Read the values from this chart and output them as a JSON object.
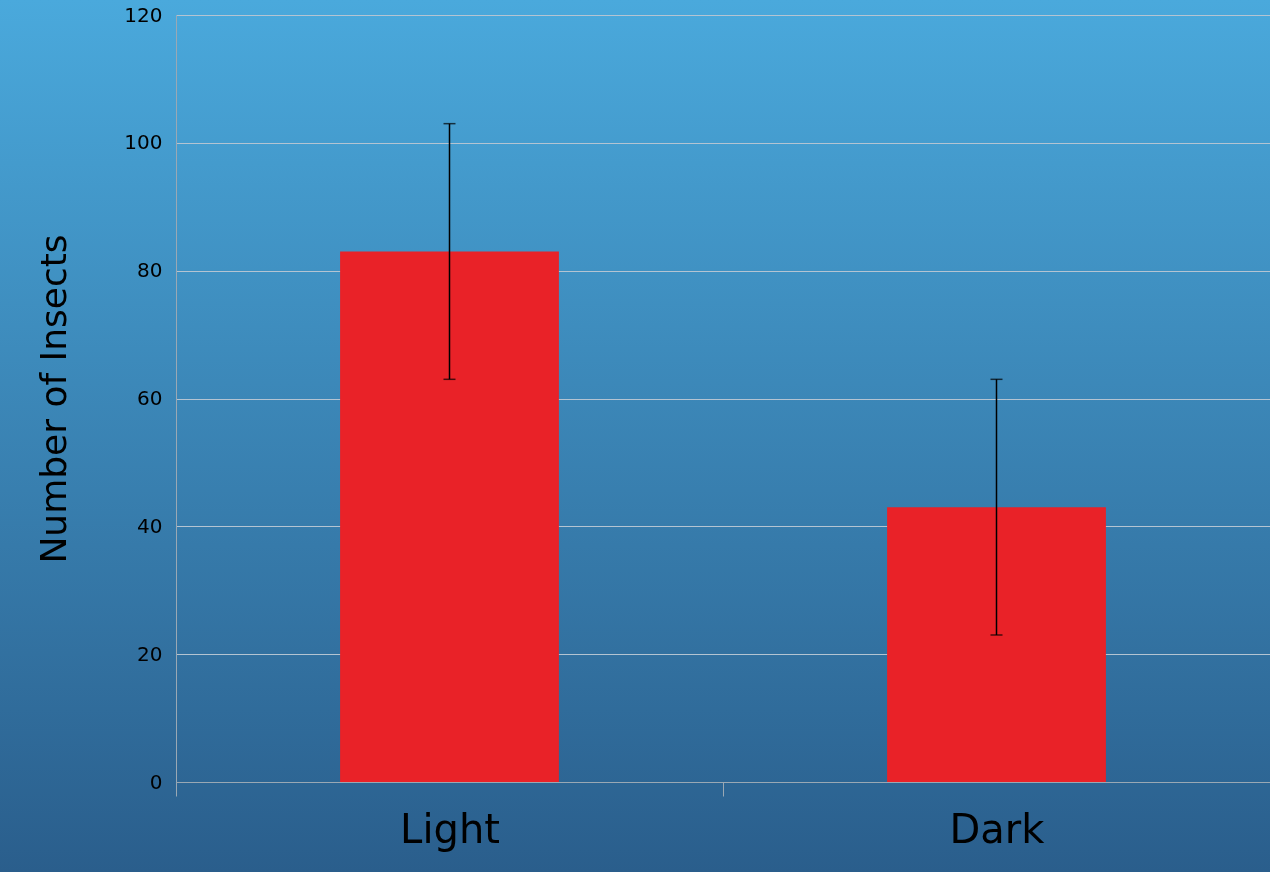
{
  "chart_data": {
    "type": "bar",
    "ylabel": "Number of Insects",
    "categories": [
      "Light",
      "Dark"
    ],
    "values": [
      83,
      43
    ],
    "errors": [
      20,
      20
    ],
    "color": "#e92228",
    "ylim": [
      0,
      120
    ],
    "yticks": [
      0,
      20,
      40,
      60,
      80,
      100,
      120
    ],
    "grid": "y"
  }
}
